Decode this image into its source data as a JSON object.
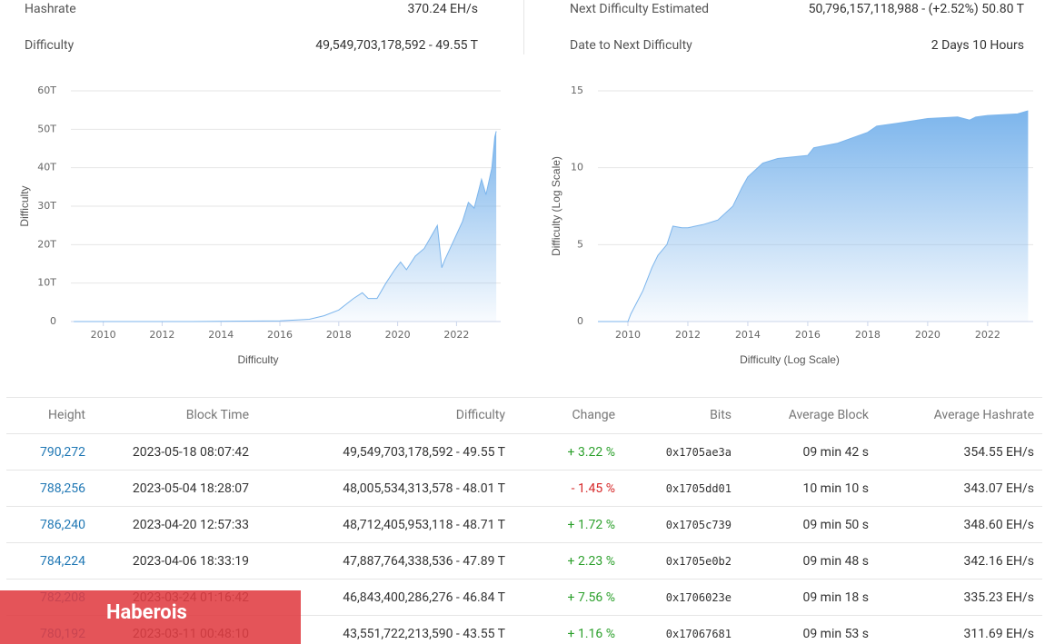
{
  "stats": [
    {
      "label": "Hashrate",
      "value": "370.24 EH/s"
    },
    {
      "label": "Difficulty",
      "value": "49,549,703,178,592 - 49.55 T"
    },
    {
      "label": "Next Difficulty Estimated",
      "value": "50,796,157,118,988 - (+2.52%) 50.80 T"
    },
    {
      "label": "Date to Next Difficulty",
      "value": "2 Days 10 Hours"
    }
  ],
  "chart_data": [
    {
      "type": "area",
      "xlabel": "Difficulty",
      "ylabel": "Difficulty",
      "color": "#7cb5ec",
      "x": [
        2009,
        2013,
        2016,
        2017,
        2017.5,
        2018,
        2018.5,
        2018.8,
        2019,
        2019.3,
        2019.6,
        2019.9,
        2020.1,
        2020.3,
        2020.6,
        2020.9,
        2021.2,
        2021.35,
        2021.5,
        2021.6,
        2021.9,
        2022.2,
        2022.4,
        2022.6,
        2022.85,
        2023.0,
        2023.2,
        2023.3,
        2023.35
      ],
      "values": [
        0,
        0.01,
        0.2,
        0.6,
        1.5,
        3,
        6,
        7.5,
        6,
        6,
        10,
        13.5,
        15.5,
        13.5,
        17,
        19,
        23,
        25,
        14,
        16,
        21,
        26,
        31,
        29.5,
        37,
        33,
        40,
        48,
        49.5
      ],
      "xlim": [
        2008.9,
        2023.5
      ],
      "xticks": [
        2010,
        2012,
        2014,
        2016,
        2018,
        2020,
        2022
      ],
      "ylim": [
        0,
        60
      ],
      "yticks": [
        0,
        {
          "value": 10,
          "label": "10T"
        },
        {
          "value": 20,
          "label": "20T"
        },
        {
          "value": 30,
          "label": "30T"
        },
        {
          "value": 40,
          "label": "40T"
        },
        {
          "value": 50,
          "label": "50T"
        },
        {
          "value": 60,
          "label": "60T"
        }
      ],
      "grid": true
    },
    {
      "type": "area",
      "xlabel": "Difficulty (Log Scale)",
      "ylabel": "Difficulty (Log Scale)",
      "color": "#7cb5ec",
      "x": [
        2009,
        2010,
        2010.1,
        2010.5,
        2010.8,
        2011.0,
        2011.3,
        2011.5,
        2011.8,
        2012,
        2012.5,
        2013,
        2013.5,
        2013.8,
        2014,
        2014.5,
        2015,
        2016,
        2016.2,
        2017,
        2018,
        2018.3,
        2019,
        2020,
        2021,
        2021.4,
        2021.6,
        2022,
        2023,
        2023.35
      ],
      "values": [
        0,
        0,
        0.5,
        2,
        3.5,
        4.3,
        5,
        6.2,
        6.1,
        6.1,
        6.3,
        6.6,
        7.5,
        8.7,
        9.4,
        10.3,
        10.6,
        10.8,
        11.3,
        11.6,
        12.3,
        12.7,
        12.9,
        13.2,
        13.3,
        13.1,
        13.3,
        13.4,
        13.5,
        13.7
      ],
      "xlim": [
        2009,
        2023.52
      ],
      "xticks": [
        2010,
        2012,
        2014,
        2016,
        2018,
        2020,
        2022
      ],
      "ylim": [
        0,
        15
      ],
      "yticks": [
        0,
        5,
        10,
        15
      ],
      "grid": true
    }
  ],
  "table": {
    "columns": [
      "Height",
      "Block Time",
      "Difficulty",
      "Change",
      "Bits",
      "Average Block",
      "Average Hashrate"
    ],
    "rows": [
      [
        "790,272",
        "2023-05-18 08:07:42",
        "49,549,703,178,592 - 49.55 T",
        "+ 3.22 %",
        "0x1705ae3a",
        "09 min 42 s",
        "354.55 EH/s"
      ],
      [
        "788,256",
        "2023-05-04 18:28:07",
        "48,005,534,313,578 - 48.01 T",
        "- 1.45 %",
        "0x1705dd01",
        "10 min 10 s",
        "343.07 EH/s"
      ],
      [
        "786,240",
        "2023-04-20 12:57:33",
        "48,712,405,953,118 - 48.71 T",
        "+ 1.72 %",
        "0x1705c739",
        "09 min 50 s",
        "348.60 EH/s"
      ],
      [
        "784,224",
        "2023-04-06 18:33:19",
        "47,887,764,338,536 - 47.89 T",
        "+ 2.23 %",
        "0x1705e0b2",
        "09 min 48 s",
        "342.16 EH/s"
      ],
      [
        "782,208",
        "2023-03-24 01:16:42",
        "46,843,400,286,276 - 46.84 T",
        "+ 7.56 %",
        "0x1706023e",
        "09 min 18 s",
        "335.23 EH/s"
      ],
      [
        "780,192",
        "2023-03-11 00:48:10",
        "43,551,722,213,590 - 43.55 T",
        "+ 1.16 %",
        "0x17067681",
        "09 min 53 s",
        "311.69 EH/s"
      ]
    ]
  },
  "overlay": "Haberois"
}
